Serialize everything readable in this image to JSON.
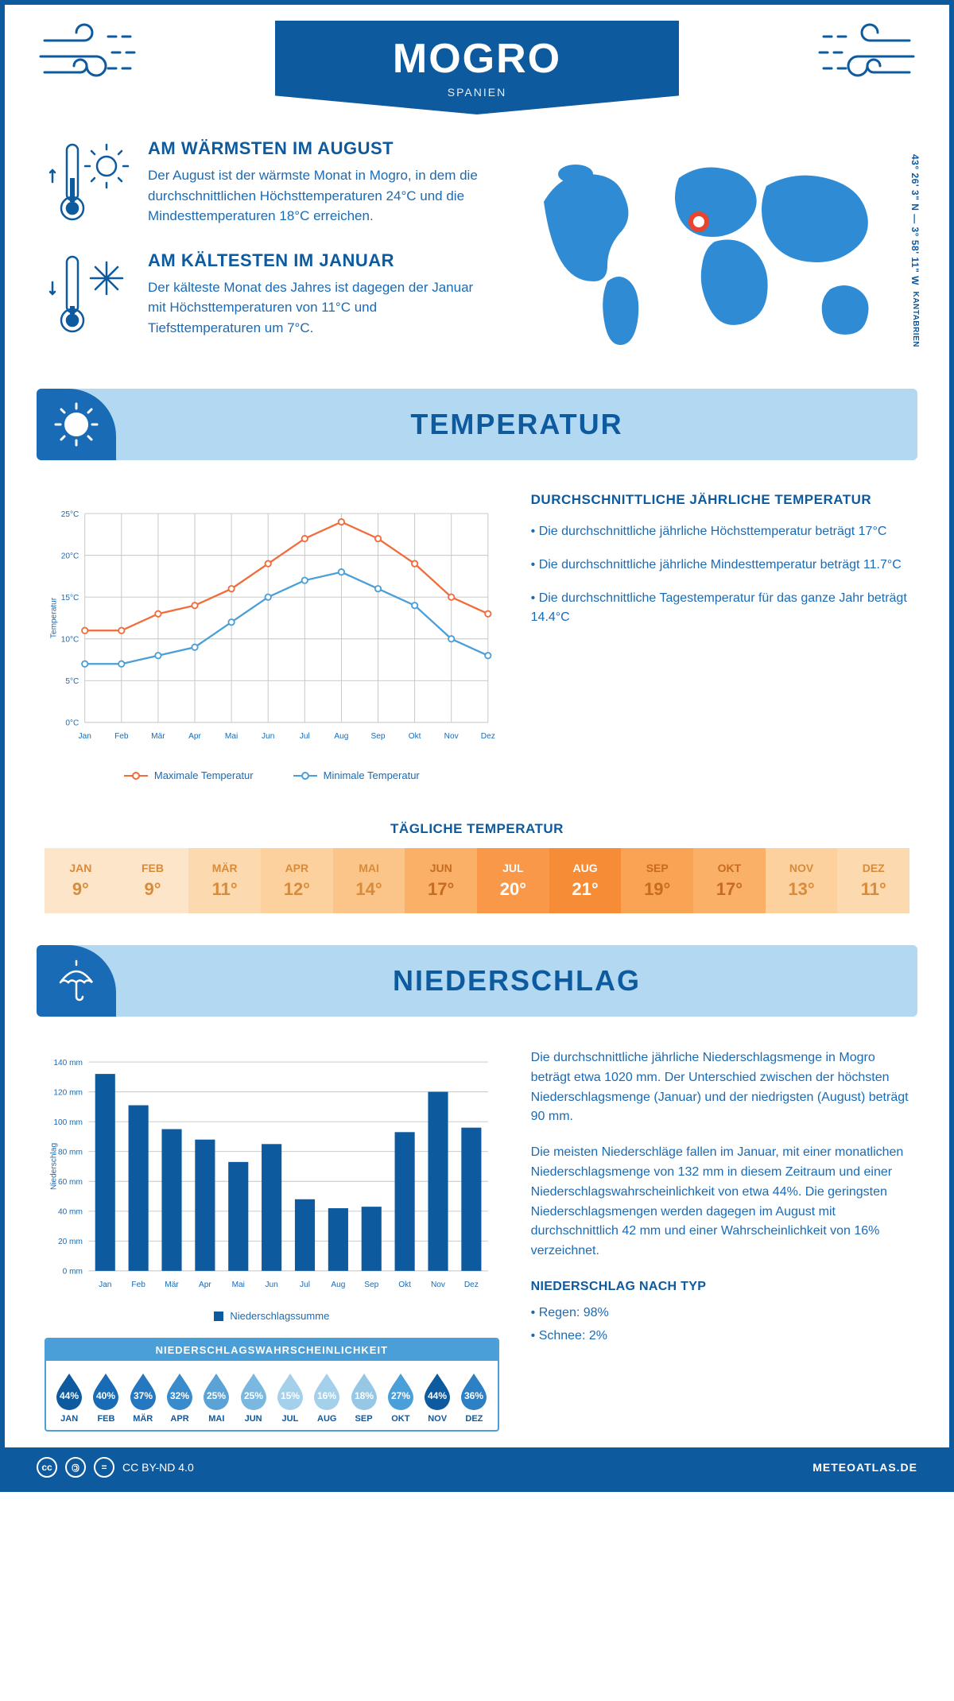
{
  "header": {
    "title": "MOGRO",
    "subtitle": "SPANIEN"
  },
  "coords": "43° 26' 3\" N — 3° 58' 11\" W",
  "region": "KANTABRIEN",
  "warmest": {
    "title": "AM WÄRMSTEN IM AUGUST",
    "text": "Der August ist der wärmste Monat in Mogro, in dem die durchschnittlichen Höchsttemperaturen 24°C und die Mindesttemperaturen 18°C erreichen."
  },
  "coldest": {
    "title": "AM KÄLTESTEN IM JANUAR",
    "text": "Der kälteste Monat des Jahres ist dagegen der Januar mit Höchsttemperaturen von 11°C und Tiefsttemperaturen um 7°C."
  },
  "sections": {
    "temperature": "TEMPERATUR",
    "precipitation": "NIEDERSCHLAG"
  },
  "temp_chart": {
    "type": "line",
    "months": [
      "Jan",
      "Feb",
      "Mär",
      "Apr",
      "Mai",
      "Jun",
      "Jul",
      "Aug",
      "Sep",
      "Okt",
      "Nov",
      "Dez"
    ],
    "max_values": [
      11,
      11,
      13,
      14,
      16,
      19,
      22,
      24,
      22,
      19,
      15,
      13
    ],
    "min_values": [
      7,
      7,
      8,
      9,
      12,
      15,
      17,
      18,
      16,
      14,
      10,
      8
    ],
    "max_color": "#f26b3a",
    "min_color": "#4a9fd8",
    "grid_color": "#c4c4c4",
    "ylim": [
      0,
      25
    ],
    "ytick_step": 5,
    "y_label": "Temperatur",
    "legend_max": "Maximale Temperatur",
    "legend_min": "Minimale Temperatur"
  },
  "temp_text": {
    "heading": "DURCHSCHNITTLICHE JÄHRLICHE TEMPERATUR",
    "b1": "• Die durchschnittliche jährliche Höchsttemperatur beträgt 17°C",
    "b2": "• Die durchschnittliche jährliche Mindesttemperatur beträgt 11.7°C",
    "b3": "• Die durchschnittliche Tagestemperatur für das ganze Jahr beträgt 14.4°C"
  },
  "daily_temp": {
    "title": "TÄGLICHE TEMPERATUR",
    "months": [
      "JAN",
      "FEB",
      "MÄR",
      "APR",
      "MAI",
      "JUN",
      "JUL",
      "AUG",
      "SEP",
      "OKT",
      "NOV",
      "DEZ"
    ],
    "values": [
      "9°",
      "9°",
      "11°",
      "12°",
      "14°",
      "17°",
      "20°",
      "21°",
      "19°",
      "17°",
      "13°",
      "11°"
    ],
    "colors": [
      "#fde5c9",
      "#fde5c9",
      "#fdd9af",
      "#fcd19e",
      "#fbc488",
      "#fab066",
      "#f89848",
      "#f78c37",
      "#f9a354",
      "#fab066",
      "#fcd19e",
      "#fdd9af"
    ],
    "text_colors": [
      "#d88b3a",
      "#d88b3a",
      "#d88b3a",
      "#d88b3a",
      "#d88b3a",
      "#c76b20",
      "#ffffff",
      "#ffffff",
      "#c76b20",
      "#c76b20",
      "#d88b3a",
      "#d88b3a"
    ]
  },
  "rain_chart": {
    "type": "bar",
    "months": [
      "Jan",
      "Feb",
      "Mär",
      "Apr",
      "Mai",
      "Jun",
      "Jul",
      "Aug",
      "Sep",
      "Okt",
      "Nov",
      "Dez"
    ],
    "values": [
      132,
      111,
      95,
      88,
      73,
      85,
      48,
      42,
      43,
      93,
      120,
      96
    ],
    "bar_color": "#0d5a9f",
    "grid_color": "#c4c4c4",
    "ylim": [
      0,
      140
    ],
    "ytick_step": 20,
    "y_label": "Niederschlag",
    "legend": "Niederschlagssumme"
  },
  "rain_prob": {
    "title": "NIEDERSCHLAGSWAHRSCHEINLICHKEIT",
    "months": [
      "JAN",
      "FEB",
      "MÄR",
      "APR",
      "MAI",
      "JUN",
      "JUL",
      "AUG",
      "SEP",
      "OKT",
      "NOV",
      "DEZ"
    ],
    "values": [
      "44%",
      "40%",
      "37%",
      "32%",
      "25%",
      "25%",
      "15%",
      "16%",
      "18%",
      "27%",
      "44%",
      "36%"
    ],
    "colors": [
      "#0d5a9f",
      "#1a6bb5",
      "#2577bf",
      "#3a8bcb",
      "#5ba3d6",
      "#7bb8e0",
      "#a5d0eb",
      "#a5d0eb",
      "#96c8e6",
      "#4a9fd8",
      "#0d5a9f",
      "#2e80c4"
    ]
  },
  "rain_text": {
    "p1": "Die durchschnittliche jährliche Niederschlagsmenge in Mogro beträgt etwa 1020 mm. Der Unterschied zwischen der höchsten Niederschlagsmenge (Januar) und der niedrigsten (August) beträgt 90 mm.",
    "p2": "Die meisten Niederschläge fallen im Januar, mit einer monatlichen Niederschlagsmenge von 132 mm in diesem Zeitraum und einer Niederschlagswahrscheinlichkeit von etwa 44%. Die geringsten Niederschlagsmengen werden dagegen im August mit durchschnittlich 42 mm und einer Wahrscheinlichkeit von 16% verzeichnet.",
    "type_heading": "NIEDERSCHLAG NACH TYP",
    "type1": "• Regen: 98%",
    "type2": "• Schnee: 2%"
  },
  "footer": {
    "license": "CC BY-ND 4.0",
    "brand": "METEOATLAS.DE"
  },
  "palette": {
    "primary": "#0d5a9f",
    "secondary": "#1a6bb5",
    "light_blue": "#b3d9f2",
    "mid_blue": "#4a9fd8"
  }
}
